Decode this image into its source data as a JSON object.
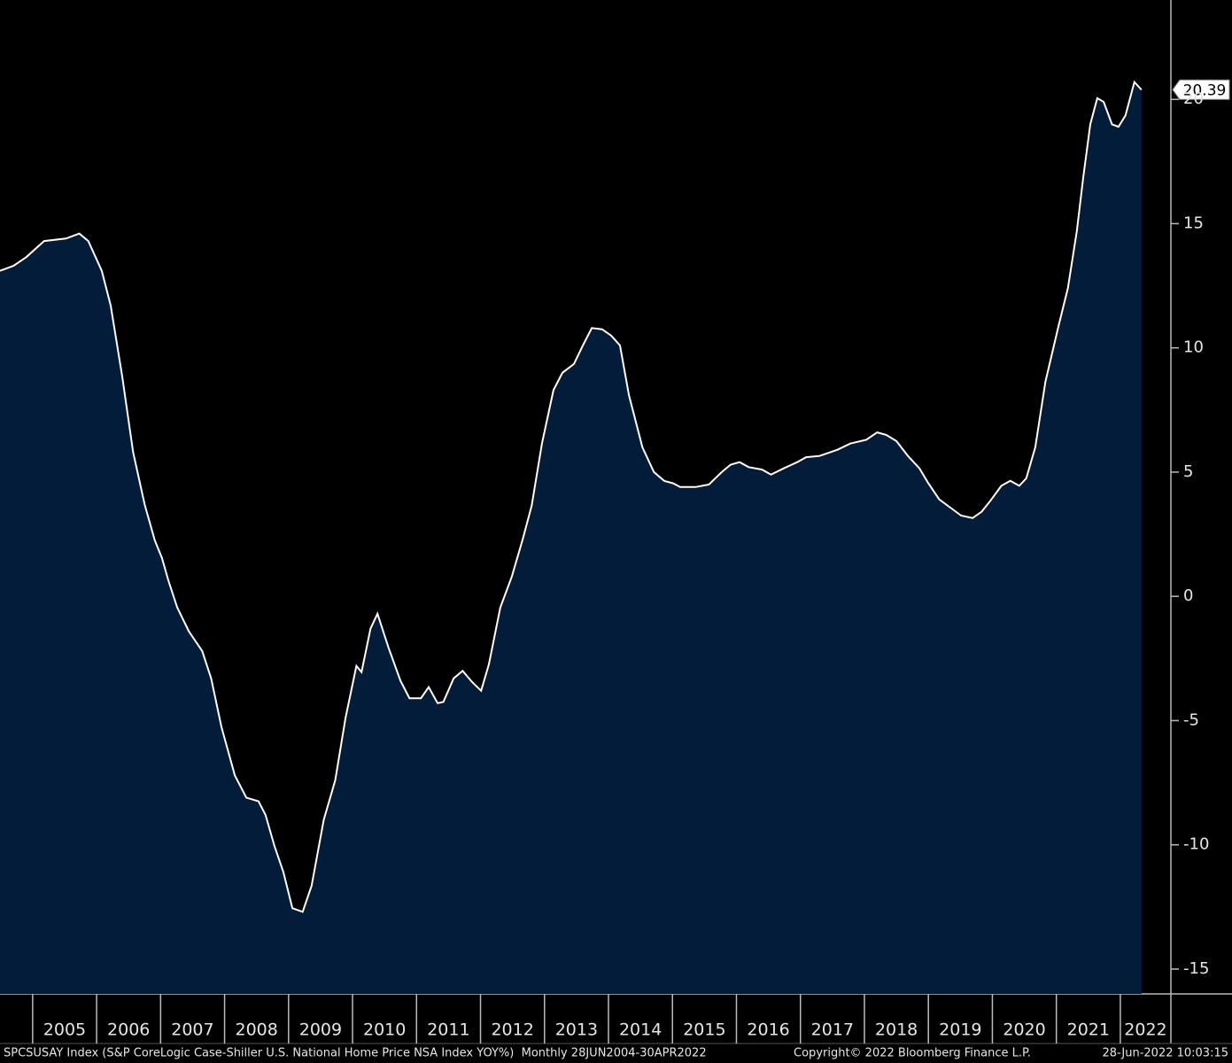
{
  "chart_data": {
    "type": "area",
    "x": [
      2004.49,
      2004.7,
      2004.9,
      2005.18,
      2005.52,
      2005.73,
      2005.87,
      2006.08,
      2006.22,
      2006.4,
      2006.57,
      2006.75,
      2006.91,
      2007.02,
      2007.12,
      2007.26,
      2007.44,
      2007.65,
      2007.79,
      2007.95,
      2008.16,
      2008.34,
      2008.53,
      2008.64,
      2008.78,
      2008.92,
      2009.06,
      2009.22,
      2009.36,
      2009.55,
      2009.73,
      2009.89,
      2010.06,
      2010.14,
      2010.28,
      2010.39,
      2010.56,
      2010.75,
      2010.89,
      2011.07,
      2011.19,
      2011.33,
      2011.42,
      2011.58,
      2011.72,
      2011.87,
      2012.01,
      2012.13,
      2012.31,
      2012.49,
      2012.66,
      2012.8,
      2012.96,
      2013.14,
      2013.28,
      2013.46,
      2013.6,
      2013.74,
      2013.9,
      2014.04,
      2014.18,
      2014.32,
      2014.53,
      2014.71,
      2014.87,
      2015.01,
      2015.12,
      2015.36,
      2015.57,
      2015.77,
      2015.91,
      2016.05,
      2016.19,
      2016.4,
      2016.54,
      2016.74,
      2016.95,
      2017.09,
      2017.3,
      2017.58,
      2017.78,
      2018.03,
      2018.2,
      2018.34,
      2018.5,
      2018.68,
      2018.86,
      2019.0,
      2019.17,
      2019.38,
      2019.51,
      2019.69,
      2019.83,
      2019.97,
      2020.14,
      2020.28,
      2020.42,
      2020.53,
      2020.67,
      2020.83,
      2021.04,
      2021.18,
      2021.32,
      2021.42,
      2021.53,
      2021.64,
      2021.74,
      2021.87,
      2021.97,
      2022.08,
      2022.22,
      2022.33
    ],
    "values": [
      13.1,
      13.3,
      13.65,
      14.3,
      14.4,
      14.6,
      14.3,
      13.1,
      11.7,
      8.85,
      5.8,
      3.7,
      2.25,
      1.55,
      0.65,
      -0.45,
      -1.4,
      -2.2,
      -3.3,
      -5.25,
      -7.2,
      -8.1,
      -8.25,
      -8.8,
      -10.05,
      -11.1,
      -12.55,
      -12.7,
      -11.65,
      -9.0,
      -7.4,
      -4.9,
      -2.8,
      -3.05,
      -1.3,
      -0.7,
      -2.05,
      -3.4,
      -4.1,
      -4.1,
      -3.65,
      -4.3,
      -4.25,
      -3.3,
      -3.0,
      -3.45,
      -3.8,
      -2.75,
      -0.45,
      0.8,
      2.3,
      3.65,
      6.15,
      8.3,
      9.0,
      9.35,
      10.1,
      10.8,
      10.75,
      10.5,
      10.1,
      8.1,
      6.0,
      5.0,
      4.65,
      4.55,
      4.4,
      4.4,
      4.5,
      5.0,
      5.3,
      5.4,
      5.2,
      5.1,
      4.9,
      5.15,
      5.4,
      5.6,
      5.65,
      5.9,
      6.15,
      6.3,
      6.6,
      6.5,
      6.25,
      5.65,
      5.15,
      4.55,
      3.9,
      3.5,
      3.25,
      3.15,
      3.4,
      3.85,
      4.45,
      4.65,
      4.45,
      4.75,
      6.0,
      8.65,
      10.95,
      12.4,
      14.7,
      16.85,
      19.0,
      20.05,
      19.9,
      19.0,
      18.9,
      19.35,
      20.7,
      20.39
    ],
    "line_color": "#ffffff",
    "fill_color": "#031c3a",
    "xlim": [
      2004.49,
      2022.79
    ],
    "ylim": [
      -16,
      24
    ],
    "xticks": [
      2005,
      2006,
      2007,
      2008,
      2009,
      2010,
      2011,
      2012,
      2013,
      2014,
      2015,
      2016,
      2017,
      2018,
      2019,
      2020,
      2021,
      2022
    ],
    "yticks": [
      -15,
      -10,
      -5,
      0,
      5,
      10,
      15,
      20
    ],
    "source": "SPCSUSAY Index (S&P CoreLogic Case-Shiller U.S. National Home Price NSA Index YOY%)  Monthly 28JUN2004-30APR2022",
    "copyright": "Copyright© 2022 Bloomberg Finance L.P.",
    "timestamp": "28-Jun-2022 10:03:15"
  }
}
